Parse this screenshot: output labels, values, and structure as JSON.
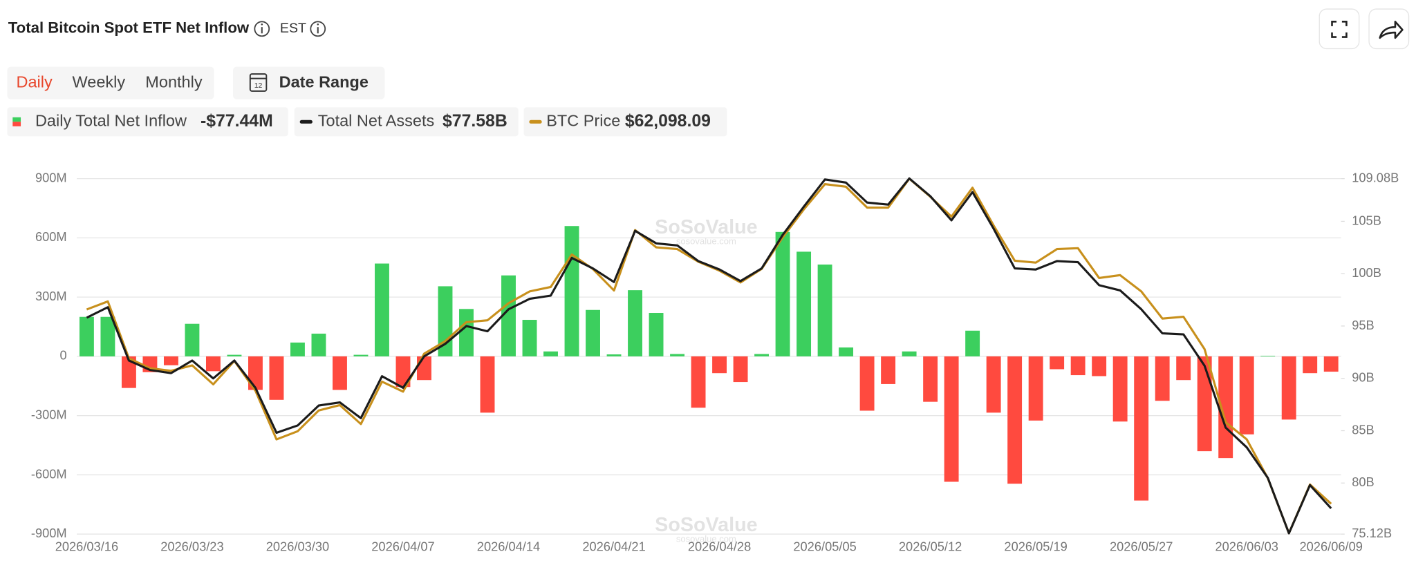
{
  "page": {
    "title": "Total Bitcoin Spot ETF Net Inflow",
    "timezone": "EST",
    "tabs": [
      "Daily",
      "Weekly",
      "Monthly"
    ],
    "date_range": "Date Range"
  },
  "chart_data": {
    "type": "bar",
    "watermark": "SoSoValue",
    "watermark_url": "sosovalue.com",
    "categories": [
      "2026/03/16",
      null,
      null,
      null,
      null,
      "2026/03/23",
      null,
      null,
      null,
      null,
      "2026/03/30",
      null,
      null,
      null,
      null,
      "2026/04/07",
      null,
      null,
      null,
      null,
      "2026/04/14",
      null,
      null,
      null,
      null,
      "2026/04/21",
      null,
      null,
      null,
      null,
      "2026/04/28",
      null,
      null,
      null,
      null,
      "2026/05/05",
      null,
      null,
      null,
      null,
      "2026/05/12",
      null,
      null,
      null,
      null,
      "2026/05/19",
      null,
      null,
      null,
      null,
      "2026/05/27",
      null,
      null,
      null,
      null,
      "2026/06/03",
      null,
      null,
      null,
      "2026/06/09"
    ],
    "series": [
      {
        "name": "Daily Total Net Inflow",
        "type": "bar",
        "color": "#3ccf5e",
        "negative_color": "#ff4a3f",
        "values": [
          200,
          200,
          -160,
          -80,
          -45,
          165,
          -75,
          8,
          -170,
          -220,
          70,
          115,
          -170,
          8,
          470,
          -155,
          -120,
          355,
          240,
          -285,
          410,
          185,
          25,
          660,
          235,
          10,
          335,
          220,
          12,
          -260,
          -85,
          -130,
          12,
          630,
          530,
          465,
          45,
          -275,
          -140,
          25,
          -230,
          -635,
          130,
          -285,
          -645,
          -325,
          -65,
          -95,
          -100,
          -330,
          -730,
          -225,
          -120,
          -480,
          -515,
          -395,
          3,
          -320,
          -85,
          -77.44
        ]
      },
      {
        "name": "Total Net Assets",
        "type": "line",
        "axis": "y2",
        "color": "#1b1b1b",
        "values": [
          95.8,
          96.8,
          91.7,
          90.8,
          90.5,
          91.7,
          90.0,
          91.7,
          89.1,
          84.8,
          85.5,
          87.4,
          87.7,
          86.2,
          90.2,
          89.1,
          92.1,
          93.3,
          95.0,
          94.5,
          96.6,
          97.6,
          97.9,
          101.5,
          100.5,
          99.2,
          104.1,
          102.9,
          102.7,
          101.2,
          100.4,
          99.3,
          100.5,
          103.7,
          106.4,
          109.0,
          108.7,
          106.8,
          106.6,
          109.1,
          107.4,
          105.1,
          107.8,
          104.3,
          100.5,
          100.4,
          101.2,
          101.1,
          98.9,
          98.4,
          96.6,
          94.3,
          94.2,
          91.2,
          85.3,
          83.4,
          80.5,
          75.2,
          79.8,
          77.58
        ]
      },
      {
        "name": "BTC Price",
        "type": "line",
        "axis": "y3",
        "color": "#c8901c",
        "values": [
          88330,
          89420,
          81750,
          80410,
          80050,
          80780,
          78220,
          81390,
          77370,
          70790,
          71890,
          74690,
          75420,
          72860,
          78590,
          77240,
          82360,
          84060,
          86620,
          86870,
          89180,
          90770,
          91370,
          95760,
          93810,
          90890,
          99050,
          96730,
          96490,
          94780,
          93570,
          91980,
          93810,
          98070,
          101850,
          105260,
          104900,
          102090,
          102090,
          105990,
          103550,
          100870,
          104770,
          99660,
          94910,
          94660,
          96490,
          96610,
          92590,
          92960,
          90770,
          87110,
          87350,
          82970,
          73100,
          70790,
          65550,
          58120,
          64700,
          62098.09
        ]
      }
    ],
    "legend_values": [
      "-$77.44M",
      "$77.58B",
      "$62,098.09"
    ],
    "ylim": [
      -900,
      900
    ],
    "yticks": [
      {
        "value": 900,
        "label": "900M"
      },
      {
        "value": 600,
        "label": "600M"
      },
      {
        "value": 300,
        "label": "300M"
      },
      0,
      {
        "value": -300,
        "label": "-300M"
      },
      {
        "value": -600,
        "label": "-600M"
      },
      {
        "value": -900,
        "label": "-900M"
      }
    ],
    "y2lim": [
      75.12,
      109.08
    ],
    "y2ticks": [
      {
        "value": 109.08,
        "label": "109.08B"
      },
      {
        "value": 105,
        "label": "105B"
      },
      {
        "value": 100,
        "label": "100B"
      },
      {
        "value": 95,
        "label": "95B"
      },
      {
        "value": 90,
        "label": "90B"
      },
      {
        "value": 85,
        "label": "85B"
      },
      {
        "value": 80,
        "label": "80B"
      },
      {
        "value": 75.12,
        "label": "75.12B"
      }
    ],
    "y3lim": [
      58000,
      106000
    ],
    "grid": true
  }
}
